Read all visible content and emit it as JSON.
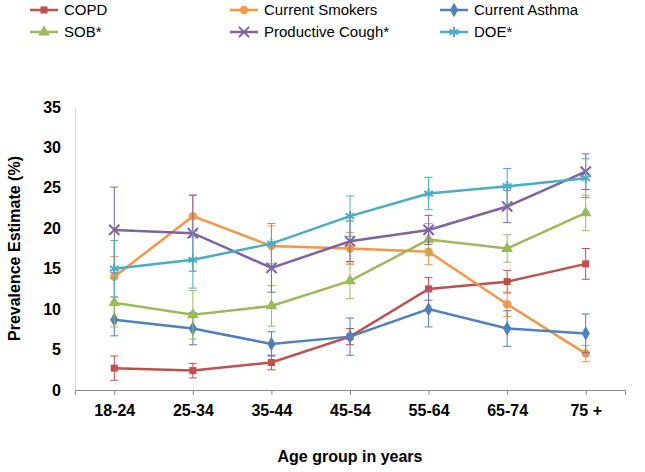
{
  "chart_data": {
    "type": "line",
    "x_label": "Age group in years",
    "y_label": "Prevalence Estimate (%)",
    "categories": [
      "18-24",
      "25-34",
      "35-44",
      "45-54",
      "55-64",
      "65-74",
      "75 +"
    ],
    "ylim": [
      0,
      35
    ],
    "yticks": [
      0,
      5,
      10,
      15,
      20,
      25,
      30,
      35
    ],
    "grid": false,
    "legend": "top",
    "series": [
      {
        "name": "COPD",
        "color": "#c0504d",
        "marker": "square",
        "values": [
          2.7,
          2.4,
          3.4,
          6.6,
          12.5,
          13.4,
          15.6
        ],
        "errors": [
          1.5,
          0.9,
          0.9,
          1.0,
          1.4,
          1.4,
          1.9
        ]
      },
      {
        "name": "Current Smokers",
        "color": "#f79646",
        "marker": "circle",
        "values": [
          14.0,
          21.5,
          17.8,
          17.5,
          17.1,
          10.6,
          4.5
        ],
        "errors": [
          2.5,
          2.6,
          2.5,
          2.0,
          1.6,
          1.5,
          1.0
        ]
      },
      {
        "name": "Current Asthma",
        "color": "#4f81bd",
        "marker": "diamond",
        "values": [
          8.7,
          7.6,
          5.7,
          6.6,
          10.0,
          7.6,
          7.0
        ],
        "errors": [
          2.0,
          2.0,
          1.5,
          2.3,
          2.2,
          2.2,
          2.4
        ]
      },
      {
        "name": "SOB*",
        "color": "#9bbb59",
        "marker": "triangle",
        "values": [
          10.8,
          9.3,
          10.4,
          13.5,
          18.6,
          17.5,
          21.9
        ],
        "errors": [
          3.0,
          3.0,
          2.5,
          2.2,
          2.0,
          1.7,
          2.2
        ]
      },
      {
        "name": "Productive Cough*",
        "color": "#8064a2",
        "marker": "cross",
        "values": [
          19.8,
          19.4,
          15.1,
          18.4,
          19.8,
          22.7,
          27.0
        ],
        "errors": [
          5.3,
          4.7,
          3.0,
          2.5,
          1.8,
          2.0,
          2.2
        ]
      },
      {
        "name": "DOE*",
        "color": "#4bacc6",
        "marker": "asterisk",
        "values": [
          15.0,
          16.1,
          18.1,
          21.5,
          24.3,
          25.2,
          26.2
        ],
        "errors": [
          3.5,
          3.5,
          2.5,
          2.5,
          2.0,
          2.2,
          2.4
        ]
      }
    ]
  }
}
